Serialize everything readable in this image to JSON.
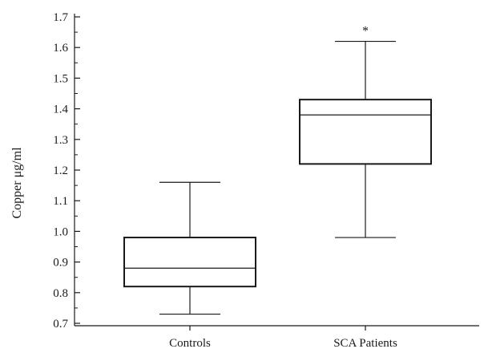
{
  "chart_data": {
    "type": "boxplot",
    "ylabel": "Copper μg/ml",
    "ylim": [
      0.7,
      1.7
    ],
    "yticks": [
      "0.7",
      "0.8",
      "0.9",
      "1.0",
      "1.1",
      "1.2",
      "1.3",
      "1.4",
      "1.5",
      "1.6",
      "1.7"
    ],
    "minor_ticks": true,
    "grid": false,
    "categories": [
      "Controls",
      "SCA Patients"
    ],
    "boxes": [
      {
        "category": "Controls",
        "whisker_low": 0.73,
        "q1": 0.82,
        "median": 0.88,
        "q3": 0.98,
        "whisker_high": 1.16,
        "annotation": ""
      },
      {
        "category": "SCA Patients",
        "whisker_low": 0.98,
        "q1": 1.22,
        "median": 1.38,
        "q3": 1.43,
        "whisker_high": 1.62,
        "annotation": "*"
      }
    ]
  }
}
